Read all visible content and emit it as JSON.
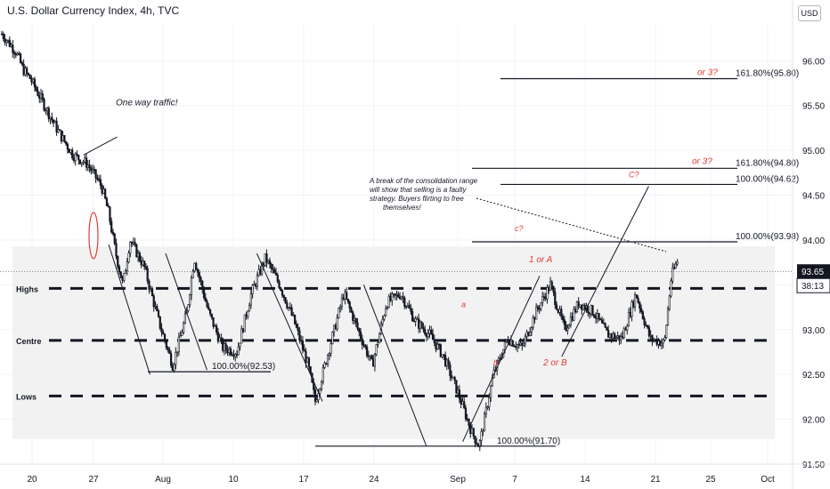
{
  "header": {
    "title": "U.S. Dollar Currency Index, 4h, TVC",
    "currency": "USD"
  },
  "colors": {
    "candle": "#131722",
    "grid": "#f0f3fa",
    "accent_red": "#e53935",
    "zone": "#f0f0f0",
    "line": "#131722"
  },
  "chart_data": {
    "type": "candlestick",
    "title": "U.S. Dollar Currency Index, 4h, TVC",
    "ylim": [
      91.5,
      96.4
    ],
    "y_ticks": [
      91.5,
      92.0,
      92.5,
      93.0,
      93.5,
      94.0,
      94.5,
      95.0,
      95.5,
      96.0
    ],
    "y_tick_labels": [
      "91.50",
      "92.00",
      "92.50",
      "93.00",
      "93.50",
      "94.00",
      "94.50",
      "95.00",
      "95.50",
      "96.00"
    ],
    "x_ticks": [
      "20",
      "27",
      "Aug",
      "10",
      "17",
      "24",
      "Sep",
      "7",
      "14",
      "21",
      "25",
      "Oct"
    ],
    "last_price": {
      "value": 93.65,
      "label": "93.65",
      "countdown": "38:13"
    },
    "path": [
      [
        0,
        96.3
      ],
      [
        2,
        96.1
      ],
      [
        3,
        95.9
      ],
      [
        4,
        95.8
      ],
      [
        6,
        95.5
      ],
      [
        8,
        95.2
      ],
      [
        10,
        94.95
      ],
      [
        12,
        94.85
      ],
      [
        14,
        94.6
      ],
      [
        15,
        94.3
      ],
      [
        16,
        93.85
      ],
      [
        17,
        93.5
      ],
      [
        18,
        94.0
      ],
      [
        20,
        93.7
      ],
      [
        22,
        93.1
      ],
      [
        24,
        92.6
      ],
      [
        26,
        93.2
      ],
      [
        27,
        93.8
      ],
      [
        29,
        93.2
      ],
      [
        31,
        92.8
      ],
      [
        33,
        92.75
      ],
      [
        35,
        93.4
      ],
      [
        37,
        93.8
      ],
      [
        39,
        93.5
      ],
      [
        41,
        93.1
      ],
      [
        43,
        92.6
      ],
      [
        44,
        92.2
      ],
      [
        46,
        92.8
      ],
      [
        48,
        93.4
      ],
      [
        50,
        93.0
      ],
      [
        52,
        92.6
      ],
      [
        54,
        93.3
      ],
      [
        56,
        93.4
      ],
      [
        58,
        93.1
      ],
      [
        60,
        92.95
      ],
      [
        62,
        92.7
      ],
      [
        64,
        92.3
      ],
      [
        66,
        91.85
      ],
      [
        67,
        91.7
      ],
      [
        69,
        92.5
      ],
      [
        71,
        92.9
      ],
      [
        73,
        92.8
      ],
      [
        75,
        93.2
      ],
      [
        77,
        93.5
      ],
      [
        79,
        93.0
      ],
      [
        81,
        93.3
      ],
      [
        83,
        93.2
      ],
      [
        85,
        92.95
      ],
      [
        87,
        92.9
      ],
      [
        89,
        93.4
      ],
      [
        91,
        92.9
      ],
      [
        93,
        92.85
      ],
      [
        94,
        93.6
      ],
      [
        95,
        93.8
      ]
    ],
    "levels": [
      {
        "name": "Highs",
        "value": 93.46,
        "style": "dashed"
      },
      {
        "name": "Centre",
        "value": 92.88,
        "style": "dashed"
      },
      {
        "name": "Lows",
        "value": 92.26,
        "style": "dashed"
      }
    ],
    "zone": {
      "top": 93.93,
      "bottom": 91.78
    },
    "fib_lines": [
      {
        "label": "161.80%(95.80)",
        "value": 95.8,
        "x_start": 70,
        "x_end": 95
      },
      {
        "label": "161.80%(94.80)",
        "value": 94.8,
        "x_start": 66,
        "x_end": 95
      },
      {
        "label": "100.00%(94.62)",
        "value": 94.62,
        "x_start": 70,
        "x_end": 95
      },
      {
        "label": "100.00%(93.98)",
        "value": 93.98,
        "x_start": 66,
        "x_end": 95
      },
      {
        "label": "100.00%(92.53)",
        "value": 92.53,
        "x_start": 20.5,
        "x_end": 29.5
      },
      {
        "label": "100.00%(91.70)",
        "value": 91.7,
        "x_start": 44,
        "x_end": 69.5
      }
    ],
    "annotations": [
      {
        "text": "One way traffic!",
        "x": 16,
        "y": 95.5,
        "color": "#131722"
      },
      {
        "text": "or 3?",
        "x": 94,
        "y": 95.84,
        "color": "#e53935"
      },
      {
        "text": "or 3?",
        "x": 93,
        "y": 94.85,
        "color": "#e53935"
      },
      {
        "text": "C?",
        "x": 88,
        "y": 94.7,
        "color": "#e53935"
      },
      {
        "text": "c?",
        "x": 72,
        "y": 94.1,
        "color": "#e53935"
      },
      {
        "text": "1 or A",
        "x": 74,
        "y": 93.75,
        "color": "#e53935"
      },
      {
        "text": "a",
        "x": 64.5,
        "y": 93.25,
        "color": "#e53935"
      },
      {
        "text": "b",
        "x": 69,
        "y": 92.6,
        "color": "#e53935"
      },
      {
        "text": "2 or B",
        "x": 76,
        "y": 92.6,
        "color": "#e53935"
      }
    ],
    "note": "A break of the consolidation range will show that selling is a faulty strategy. Buyers flirting to free themselves!"
  }
}
